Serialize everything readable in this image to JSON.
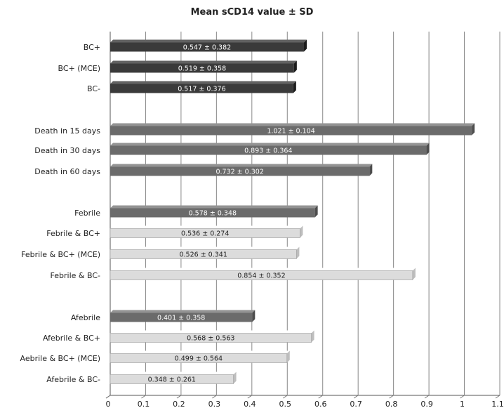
{
  "chart_data": {
    "type": "bar",
    "orientation": "horizontal",
    "title": "Mean sCD14 value ± SD",
    "xlim": [
      0,
      1.1
    ],
    "x_ticks": [
      "0",
      "0.1",
      "0.2",
      "0.3",
      "0.4",
      "0.5",
      "0.6",
      "0.7",
      "0.8",
      "0.9",
      "1",
      "1.1"
    ],
    "grid": true,
    "categories": [
      "BC+",
      "BC+ (MCE)",
      "BC-",
      "Death in 15 days",
      "Death in 30 days",
      "Death in 60 days",
      "Febrile",
      "Febrile & BC+",
      "Febrile & BC+ (MCE)",
      "Febrile & BC-",
      "Afebrile",
      "Afebrile & BC+",
      "Aebrile & BC+ (MCE)",
      "Afebrile & BC-"
    ],
    "values": [
      0.547,
      0.519,
      0.517,
      1.021,
      0.893,
      0.732,
      0.578,
      0.536,
      0.526,
      0.854,
      0.401,
      0.568,
      0.499,
      0.348
    ],
    "sd": [
      0.382,
      0.358,
      0.376,
      0.104,
      0.364,
      0.302,
      0.348,
      0.274,
      0.341,
      0.352,
      0.358,
      0.563,
      0.564,
      0.261
    ],
    "data_labels": [
      "0.547 ± 0.382",
      "0.519 ± 0.358",
      "0.517 ± 0.376",
      "1.021 ± 0.104",
      "0.893 ± 0.364",
      "0.732 ± 0.302",
      "0.578 ± 0.348",
      "0.536 ± 0.274",
      "0.526 ± 0.341",
      "0.854 ± 0.352",
      "0.401 ± 0.358",
      "0.568 ± 0.563",
      "0.499 ± 0.564",
      "0.348 ± 0.261"
    ],
    "colors": {
      "dark": "#3a3a3a",
      "mid": "#6b6b6b",
      "light": "#dcdcdc",
      "label_on_dark": "#ffffff",
      "label_on_light": "#222222",
      "grid": "#888888"
    },
    "bar_styles": [
      "dark",
      "dark",
      "dark",
      "mid",
      "mid",
      "mid",
      "mid",
      "light",
      "light",
      "light",
      "mid",
      "light",
      "light",
      "light"
    ]
  }
}
